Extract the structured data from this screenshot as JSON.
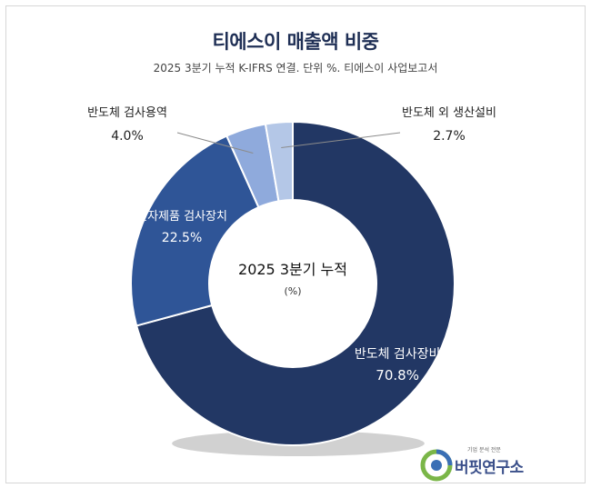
{
  "title": "티에스이 매출액 비중",
  "subtitle": "2025 3분기 누적 K-IFRS 연결. 단위 %. 티에스이 사업보고서",
  "center": {
    "line1": "2025 3분기 누적",
    "line2": "(%)"
  },
  "brand": {
    "name": "버핏연구소",
    "tagline": "기업 분석 전문"
  },
  "colors": {
    "반도체 검사장비": "#223764",
    "전자제품 검사장치": "#2f5597",
    "반도체 검사용역": "#8faadc",
    "반도체 외 생산설비": "#b4c7e7"
  },
  "chart_data": {
    "type": "pie",
    "title": "티에스이 매출액 비중",
    "subtitle": "2025 3분기 누적 K-IFRS 연결. 단위 %. 티에스이 사업보고서",
    "unit": "%",
    "slices": [
      {
        "label": "반도체 검사장비",
        "value": 70.8,
        "value_text": "70.8%"
      },
      {
        "label": "전자제품 검사장치",
        "value": 22.5,
        "value_text": "22.5%"
      },
      {
        "label": "반도체 검사용역",
        "value": 4.0,
        "value_text": "4.0%"
      },
      {
        "label": "반도체 외 생산설비",
        "value": 2.7,
        "value_text": "2.7%"
      }
    ]
  }
}
